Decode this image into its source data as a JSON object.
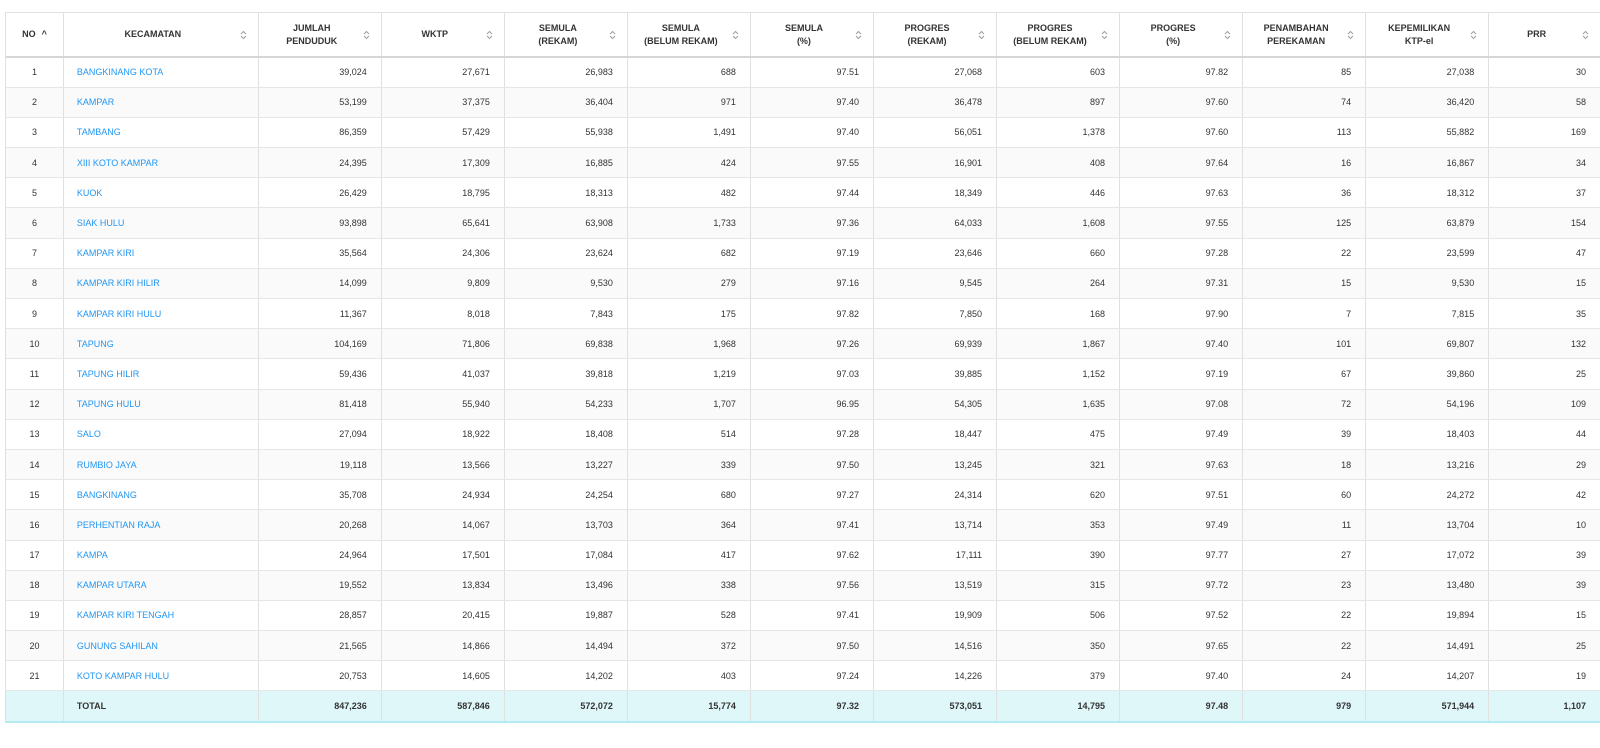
{
  "columns": [
    {
      "key": "no",
      "line1": "NO",
      "line2": ""
    },
    {
      "key": "kecamatan",
      "line1": "KECAMATAN",
      "line2": ""
    },
    {
      "key": "jumlah_penduduk",
      "line1": "JUMLAH",
      "line2": "PENDUDUK"
    },
    {
      "key": "wktp",
      "line1": "WKTP",
      "line2": ""
    },
    {
      "key": "semula_rekam",
      "line1": "SEMULA",
      "line2": "(REKAM)"
    },
    {
      "key": "semula_belum_rekam",
      "line1": "SEMULA",
      "line2": "(BELUM REKAM)"
    },
    {
      "key": "semula_persen",
      "line1": "SEMULA",
      "line2": "(%)"
    },
    {
      "key": "progres_rekam",
      "line1": "PROGRES",
      "line2": "(REKAM)"
    },
    {
      "key": "progres_belum_rekam",
      "line1": "PROGRES",
      "line2": "(BELUM REKAM)"
    },
    {
      "key": "progres_persen",
      "line1": "PROGRES",
      "line2": "(%)"
    },
    {
      "key": "penambahan_perekaman",
      "line1": "PENAMBAHAN",
      "line2": "PEREKAMAN"
    },
    {
      "key": "kepemilikan_ktp_el",
      "line1": "KEPEMILIKAN",
      "line2": "KTP-el"
    },
    {
      "key": "prr",
      "line1": "PRR",
      "line2": ""
    }
  ],
  "sort": {
    "column": "no",
    "direction": "ascending",
    "indicator": "^"
  },
  "rows": [
    [
      "1",
      "BANGKINANG KOTA",
      "39,024",
      "27,671",
      "26,983",
      "688",
      "97.51",
      "27,068",
      "603",
      "97.82",
      "85",
      "27,038",
      "30"
    ],
    [
      "2",
      "KAMPAR",
      "53,199",
      "37,375",
      "36,404",
      "971",
      "97.40",
      "36,478",
      "897",
      "97.60",
      "74",
      "36,420",
      "58"
    ],
    [
      "3",
      "TAMBANG",
      "86,359",
      "57,429",
      "55,938",
      "1,491",
      "97.40",
      "56,051",
      "1,378",
      "97.60",
      "113",
      "55,882",
      "169"
    ],
    [
      "4",
      "XIII KOTO KAMPAR",
      "24,395",
      "17,309",
      "16,885",
      "424",
      "97.55",
      "16,901",
      "408",
      "97.64",
      "16",
      "16,867",
      "34"
    ],
    [
      "5",
      "KUOK",
      "26,429",
      "18,795",
      "18,313",
      "482",
      "97.44",
      "18,349",
      "446",
      "97.63",
      "36",
      "18,312",
      "37"
    ],
    [
      "6",
      "SIAK HULU",
      "93,898",
      "65,641",
      "63,908",
      "1,733",
      "97.36",
      "64,033",
      "1,608",
      "97.55",
      "125",
      "63,879",
      "154"
    ],
    [
      "7",
      "KAMPAR KIRI",
      "35,564",
      "24,306",
      "23,624",
      "682",
      "97.19",
      "23,646",
      "660",
      "97.28",
      "22",
      "23,599",
      "47"
    ],
    [
      "8",
      "KAMPAR KIRI HILIR",
      "14,099",
      "9,809",
      "9,530",
      "279",
      "97.16",
      "9,545",
      "264",
      "97.31",
      "15",
      "9,530",
      "15"
    ],
    [
      "9",
      "KAMPAR KIRI HULU",
      "11,367",
      "8,018",
      "7,843",
      "175",
      "97.82",
      "7,850",
      "168",
      "97.90",
      "7",
      "7,815",
      "35"
    ],
    [
      "10",
      "TAPUNG",
      "104,169",
      "71,806",
      "69,838",
      "1,968",
      "97.26",
      "69,939",
      "1,867",
      "97.40",
      "101",
      "69,807",
      "132"
    ],
    [
      "11",
      "TAPUNG HILIR",
      "59,436",
      "41,037",
      "39,818",
      "1,219",
      "97.03",
      "39,885",
      "1,152",
      "97.19",
      "67",
      "39,860",
      "25"
    ],
    [
      "12",
      "TAPUNG HULU",
      "81,418",
      "55,940",
      "54,233",
      "1,707",
      "96.95",
      "54,305",
      "1,635",
      "97.08",
      "72",
      "54,196",
      "109"
    ],
    [
      "13",
      "SALO",
      "27,094",
      "18,922",
      "18,408",
      "514",
      "97.28",
      "18,447",
      "475",
      "97.49",
      "39",
      "18,403",
      "44"
    ],
    [
      "14",
      "RUMBIO JAYA",
      "19,118",
      "13,566",
      "13,227",
      "339",
      "97.50",
      "13,245",
      "321",
      "97.63",
      "18",
      "13,216",
      "29"
    ],
    [
      "15",
      "BANGKINANG",
      "35,708",
      "24,934",
      "24,254",
      "680",
      "97.27",
      "24,314",
      "620",
      "97.51",
      "60",
      "24,272",
      "42"
    ],
    [
      "16",
      "PERHENTIAN RAJA",
      "20,268",
      "14,067",
      "13,703",
      "364",
      "97.41",
      "13,714",
      "353",
      "97.49",
      "11",
      "13,704",
      "10"
    ],
    [
      "17",
      "KAMPA",
      "24,964",
      "17,501",
      "17,084",
      "417",
      "97.62",
      "17,111",
      "390",
      "97.77",
      "27",
      "17,072",
      "39"
    ],
    [
      "18",
      "KAMPAR UTARA",
      "19,552",
      "13,834",
      "13,496",
      "338",
      "97.56",
      "13,519",
      "315",
      "97.72",
      "23",
      "13,480",
      "39"
    ],
    [
      "19",
      "KAMPAR KIRI TENGAH",
      "28,857",
      "20,415",
      "19,887",
      "528",
      "97.41",
      "19,909",
      "506",
      "97.52",
      "22",
      "19,894",
      "15"
    ],
    [
      "20",
      "GUNUNG SAHILAN",
      "21,565",
      "14,866",
      "14,494",
      "372",
      "97.50",
      "14,516",
      "350",
      "97.65",
      "22",
      "14,491",
      "25"
    ],
    [
      "21",
      "KOTO KAMPAR HULU",
      "20,753",
      "14,605",
      "14,202",
      "403",
      "97.24",
      "14,226",
      "379",
      "97.40",
      "24",
      "14,207",
      "19"
    ]
  ],
  "total": [
    "",
    "TOTAL",
    "847,236",
    "587,846",
    "572,072",
    "15,774",
    "97.32",
    "573,051",
    "14,795",
    "97.48",
    "979",
    "571,944",
    "1,107"
  ]
}
